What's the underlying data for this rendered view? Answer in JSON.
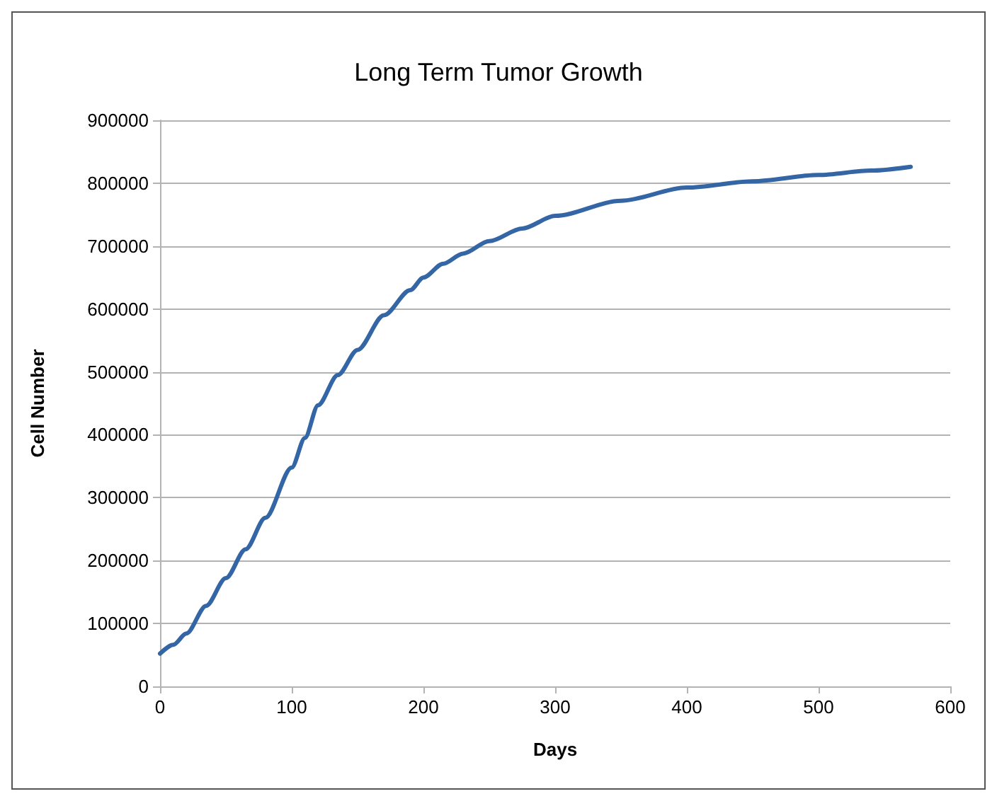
{
  "chart_data": {
    "type": "line",
    "title": "Long Term Tumor Growth",
    "xlabel": "Days",
    "ylabel": "Cell Number",
    "xlim": [
      0,
      600
    ],
    "xticks": [
      0,
      100,
      200,
      300,
      400,
      500,
      600
    ],
    "ylim": [
      0,
      900000
    ],
    "yticks": [
      0,
      100000,
      200000,
      300000,
      400000,
      500000,
      600000,
      700000,
      800000,
      900000
    ],
    "grid": "y",
    "marker": "none",
    "line_style": "solid",
    "series": [
      {
        "color": "#3465a4",
        "x": [
          0,
          10,
          20,
          35,
          50,
          65,
          80,
          100,
          110,
          120,
          135,
          150,
          170,
          190,
          200,
          215,
          230,
          250,
          275,
          300,
          350,
          400,
          450,
          500,
          540,
          570
        ],
        "values": [
          52000,
          66000,
          84000,
          128000,
          172000,
          218000,
          268000,
          348000,
          395000,
          447000,
          495000,
          535000,
          590000,
          630000,
          650000,
          672000,
          688000,
          708000,
          728000,
          748000,
          772000,
          793000,
          803000,
          813000,
          820000,
          826000
        ]
      }
    ]
  }
}
